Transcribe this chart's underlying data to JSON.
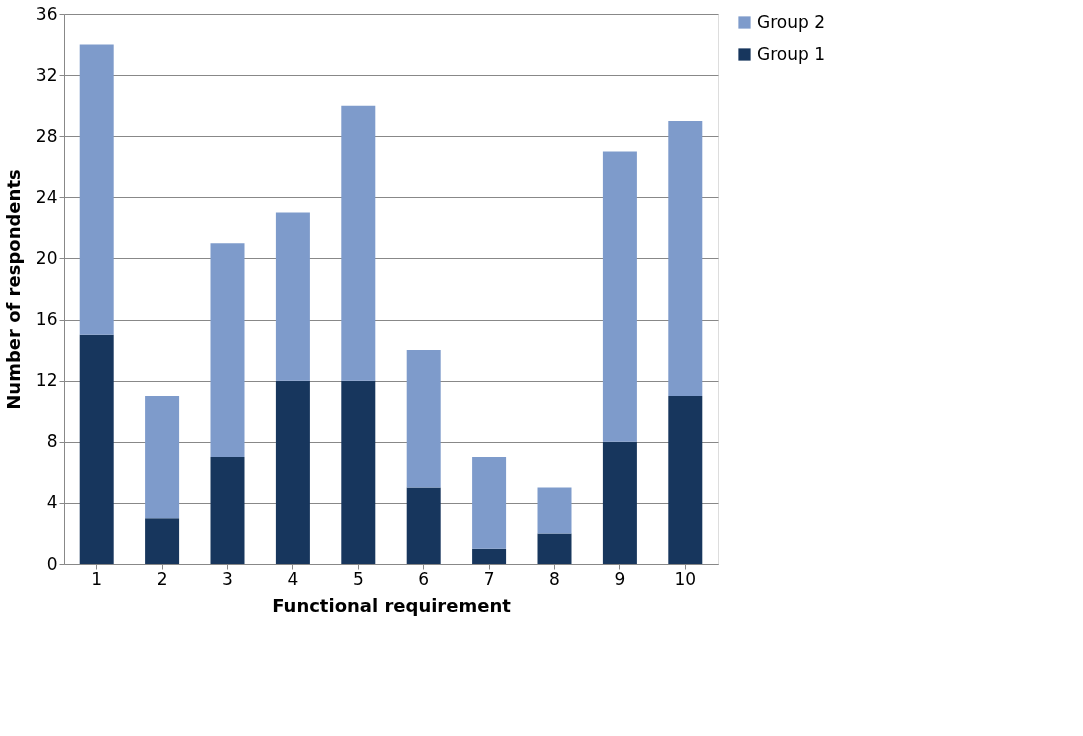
{
  "chart_data": {
    "type": "bar",
    "stacked": true,
    "xlabel": "Functional requirement",
    "ylabel": "Number of respondents",
    "categories": [
      "1",
      "2",
      "3",
      "4",
      "5",
      "6",
      "7",
      "8",
      "9",
      "10"
    ],
    "series": [
      {
        "name": "Group 1",
        "color": "#17365d",
        "values": [
          15,
          3,
          7,
          12,
          12,
          5,
          1,
          2,
          8,
          11
        ]
      },
      {
        "name": "Group 2",
        "color": "#7e9bcb",
        "values": [
          19,
          8,
          14,
          11,
          18,
          9,
          6,
          3,
          19,
          18
        ]
      }
    ],
    "ylim": [
      0,
      36
    ],
    "yticks": [
      0,
      4,
      8,
      12,
      16,
      20,
      24,
      28,
      32,
      36
    ],
    "grid": "y",
    "legend": "right"
  }
}
